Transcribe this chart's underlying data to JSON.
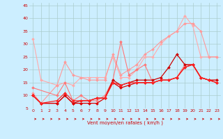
{
  "title": "",
  "xlabel": "Vent moyen/en rafales ( km/h )",
  "ylabel": "",
  "background_color": "#cceeff",
  "grid_color": "#aacccc",
  "xlim": [
    -0.5,
    23.5
  ],
  "ylim": [
    5,
    46
  ],
  "yticks": [
    5,
    10,
    15,
    20,
    25,
    30,
    35,
    40,
    45
  ],
  "xticks": [
    0,
    1,
    2,
    3,
    4,
    5,
    6,
    7,
    8,
    9,
    10,
    11,
    12,
    13,
    14,
    15,
    16,
    17,
    18,
    19,
    20,
    21,
    22,
    23
  ],
  "series": [
    {
      "x": [
        0,
        1,
        3,
        4,
        5,
        6,
        7,
        8,
        9,
        10,
        11,
        12,
        13,
        14,
        15,
        16,
        17,
        18,
        19,
        20,
        21,
        22,
        23
      ],
      "y": [
        32,
        16,
        14,
        15,
        14,
        17,
        17,
        17,
        17,
        25,
        17,
        17,
        20,
        25,
        25,
        30,
        33,
        35,
        41,
        37,
        25,
        25,
        25
      ],
      "color": "#ffaaaa",
      "marker": "D",
      "markersize": 2,
      "linewidth": 0.8
    },
    {
      "x": [
        0,
        1,
        3,
        4,
        5,
        6,
        7,
        8,
        9,
        10,
        11,
        12,
        13,
        14,
        15,
        16,
        17,
        18,
        19,
        20,
        21,
        22,
        23
      ],
      "y": [
        11,
        7,
        14,
        23,
        18,
        17,
        16,
        16,
        16,
        26,
        18,
        20,
        22,
        26,
        28,
        31,
        33,
        35,
        38,
        38,
        35,
        25,
        25
      ],
      "color": "#ff9999",
      "marker": "D",
      "markersize": 2,
      "linewidth": 0.8
    },
    {
      "x": [
        0,
        3,
        4,
        5,
        6,
        7,
        8,
        9,
        10,
        11,
        12,
        13,
        14,
        15,
        16,
        17,
        18,
        19,
        20,
        21,
        22,
        23
      ],
      "y": [
        13,
        10,
        15,
        8,
        10,
        8,
        8,
        10,
        16,
        31,
        18,
        20,
        22,
        15,
        16,
        16,
        17,
        22,
        22,
        17,
        16,
        16
      ],
      "color": "#ff7777",
      "marker": "D",
      "markersize": 2,
      "linewidth": 0.8
    },
    {
      "x": [
        0,
        1,
        3,
        4,
        5,
        6,
        7,
        8,
        9,
        10,
        11,
        12,
        13,
        14,
        15,
        16,
        17,
        18,
        19,
        20,
        21,
        22,
        23
      ],
      "y": [
        10,
        7,
        7,
        10,
        7,
        8,
        8,
        9,
        9,
        16,
        14,
        15,
        16,
        16,
        16,
        17,
        21,
        26,
        22,
        22,
        17,
        16,
        16
      ],
      "color": "#cc0000",
      "marker": "D",
      "markersize": 2,
      "linewidth": 0.9
    },
    {
      "x": [
        0,
        1,
        3,
        4,
        5,
        6,
        7,
        8,
        9,
        10,
        11,
        12,
        13,
        14,
        15,
        16,
        17,
        18,
        19,
        20,
        21,
        22,
        23
      ],
      "y": [
        10,
        7,
        7,
        10,
        7,
        7,
        7,
        7,
        9,
        15,
        13,
        14,
        15,
        15,
        15,
        16,
        16,
        17,
        21,
        22,
        17,
        16,
        15
      ],
      "color": "#dd0000",
      "marker": "D",
      "markersize": 2,
      "linewidth": 0.9
    },
    {
      "x": [
        0,
        1,
        3,
        4,
        5,
        6,
        7,
        8,
        9,
        10,
        11,
        12,
        13,
        14,
        15,
        16,
        17,
        18,
        19,
        20,
        21,
        22,
        23
      ],
      "y": [
        10,
        7,
        8,
        11,
        8,
        8,
        8,
        9,
        9,
        15,
        14,
        15,
        15,
        15,
        15,
        16,
        16,
        17,
        21,
        22,
        17,
        16,
        15
      ],
      "color": "#ff2222",
      "marker": "D",
      "markersize": 2,
      "linewidth": 0.9
    }
  ]
}
